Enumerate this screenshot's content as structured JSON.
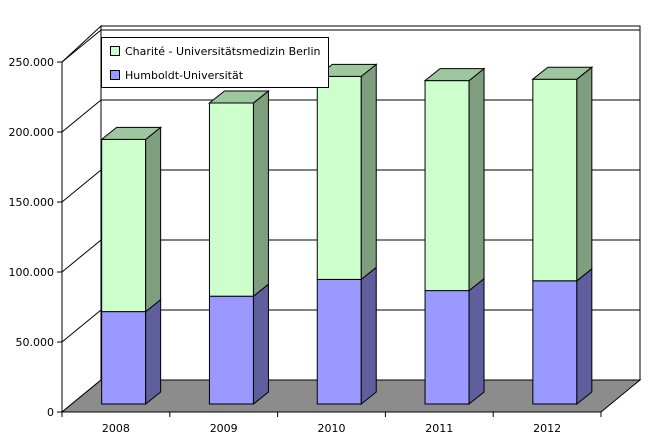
{
  "chart_data": {
    "type": "bar",
    "stacked": true,
    "three_d": true,
    "categories": [
      "2008",
      "2009",
      "2010",
      "2011",
      "2012"
    ],
    "series": [
      {
        "name": "Humboldt-Universität",
        "color": "#9999ff",
        "values": [
          66000,
          77000,
          89000,
          81000,
          88000
        ]
      },
      {
        "name": "Charité - Universitätsmedizin Berlin",
        "color": "#ccffcc",
        "values": [
          123000,
          138000,
          145000,
          150000,
          144000
        ]
      }
    ],
    "y_ticks": [
      "0",
      "50.000",
      "100.000",
      "150.000",
      "200.000",
      "250.000"
    ],
    "ylim": [
      0,
      250000
    ],
    "grid": true,
    "legend_position": "top-left",
    "title": "",
    "xlabel": "",
    "ylabel": ""
  }
}
